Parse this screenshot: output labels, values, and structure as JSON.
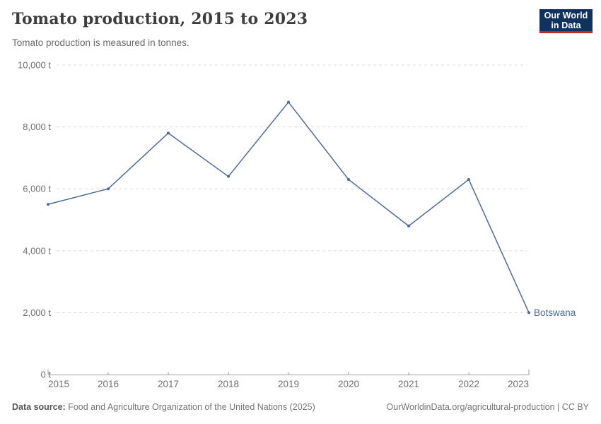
{
  "header": {
    "title": "Tomato production, 2015 to 2023",
    "subtitle": "Tomato production is measured in tonnes.",
    "logo": {
      "line1": "Our World",
      "line2": "in Data",
      "bg_color": "#11315f",
      "accent_color": "#c5281c"
    }
  },
  "chart_data": {
    "type": "line",
    "title": "Tomato production, 2015 to 2023",
    "unit": "t",
    "x": [
      2015,
      2016,
      2017,
      2018,
      2019,
      2020,
      2021,
      2022,
      2023
    ],
    "series": [
      {
        "name": "Botswana",
        "color": "#4C6A9C",
        "values": [
          5500,
          6000,
          7800,
          6400,
          8800,
          6300,
          4800,
          6300,
          2000
        ]
      }
    ],
    "ylim": [
      0,
      10000
    ],
    "yticks": [
      0,
      2000,
      4000,
      6000,
      8000,
      10000
    ],
    "ytick_labels": [
      "0 t",
      "2,000 t",
      "4,000 t",
      "6,000 t",
      "8,000 t",
      "10,000 t"
    ],
    "grid": true,
    "grid_color": "#dcdcdc",
    "axis_color": "#a0a0a0",
    "tick_text_color": "#6e6e6e",
    "legend_position": "end-of-line"
  },
  "footer": {
    "source_label": "Data source:",
    "source_text": "Food and Agriculture Organization of the United Nations (2025)",
    "credit": "OurWorldinData.org/agricultural-production | CC BY"
  }
}
